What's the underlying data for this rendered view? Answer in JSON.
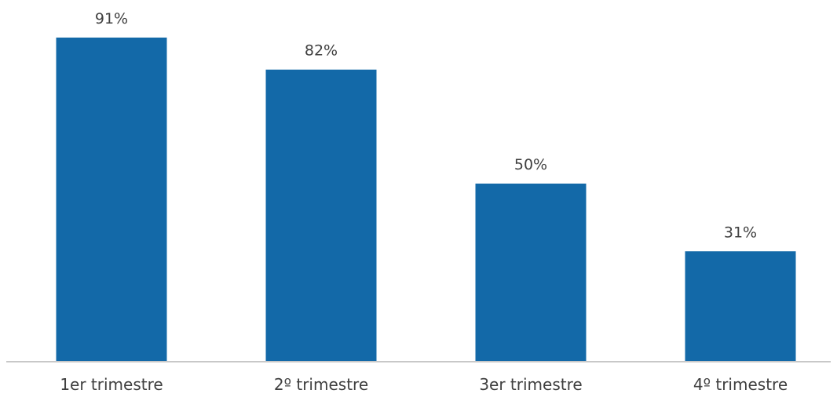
{
  "chart_data": {
    "type": "bar",
    "categories": [
      "1er trimestre",
      "2º trimestre",
      "3er trimestre",
      "4º trimestre"
    ],
    "values": [
      0.91,
      0.82,
      0.5,
      0.31
    ],
    "data_labels": [
      "91%",
      "82%",
      "50%",
      "31%"
    ],
    "value_format": "percent",
    "ylim": [
      0,
      1
    ],
    "grid": false,
    "legend": "none",
    "colors": {
      "bar": "#1369A8",
      "axis": "#C8C8C8",
      "text": "#404040"
    }
  }
}
